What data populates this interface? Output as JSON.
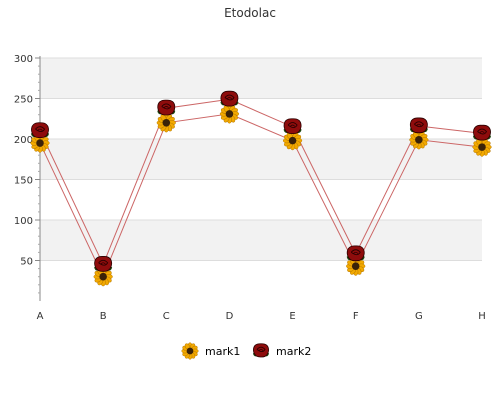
{
  "chart_data": {
    "type": "line",
    "title": "Etodolac",
    "xlabel": "",
    "ylabel": "",
    "categories": [
      "A",
      "B",
      "C",
      "D",
      "E",
      "F",
      "G",
      "H"
    ],
    "ylim": [
      0,
      300
    ],
    "yticks": [
      50,
      100,
      150,
      200,
      250,
      300
    ],
    "grid": true,
    "legend_position": "bottom",
    "series": [
      {
        "name": "mark1",
        "marker": "sunflower-icon",
        "line_color": "#cc6666",
        "values": [
          195,
          30,
          220,
          231,
          198,
          43,
          199,
          190
        ]
      },
      {
        "name": "mark2",
        "marker": "rose-icon",
        "line_color": "#cc6666",
        "values": [
          210,
          45,
          238,
          249,
          215,
          58,
          216,
          207
        ]
      }
    ]
  }
}
